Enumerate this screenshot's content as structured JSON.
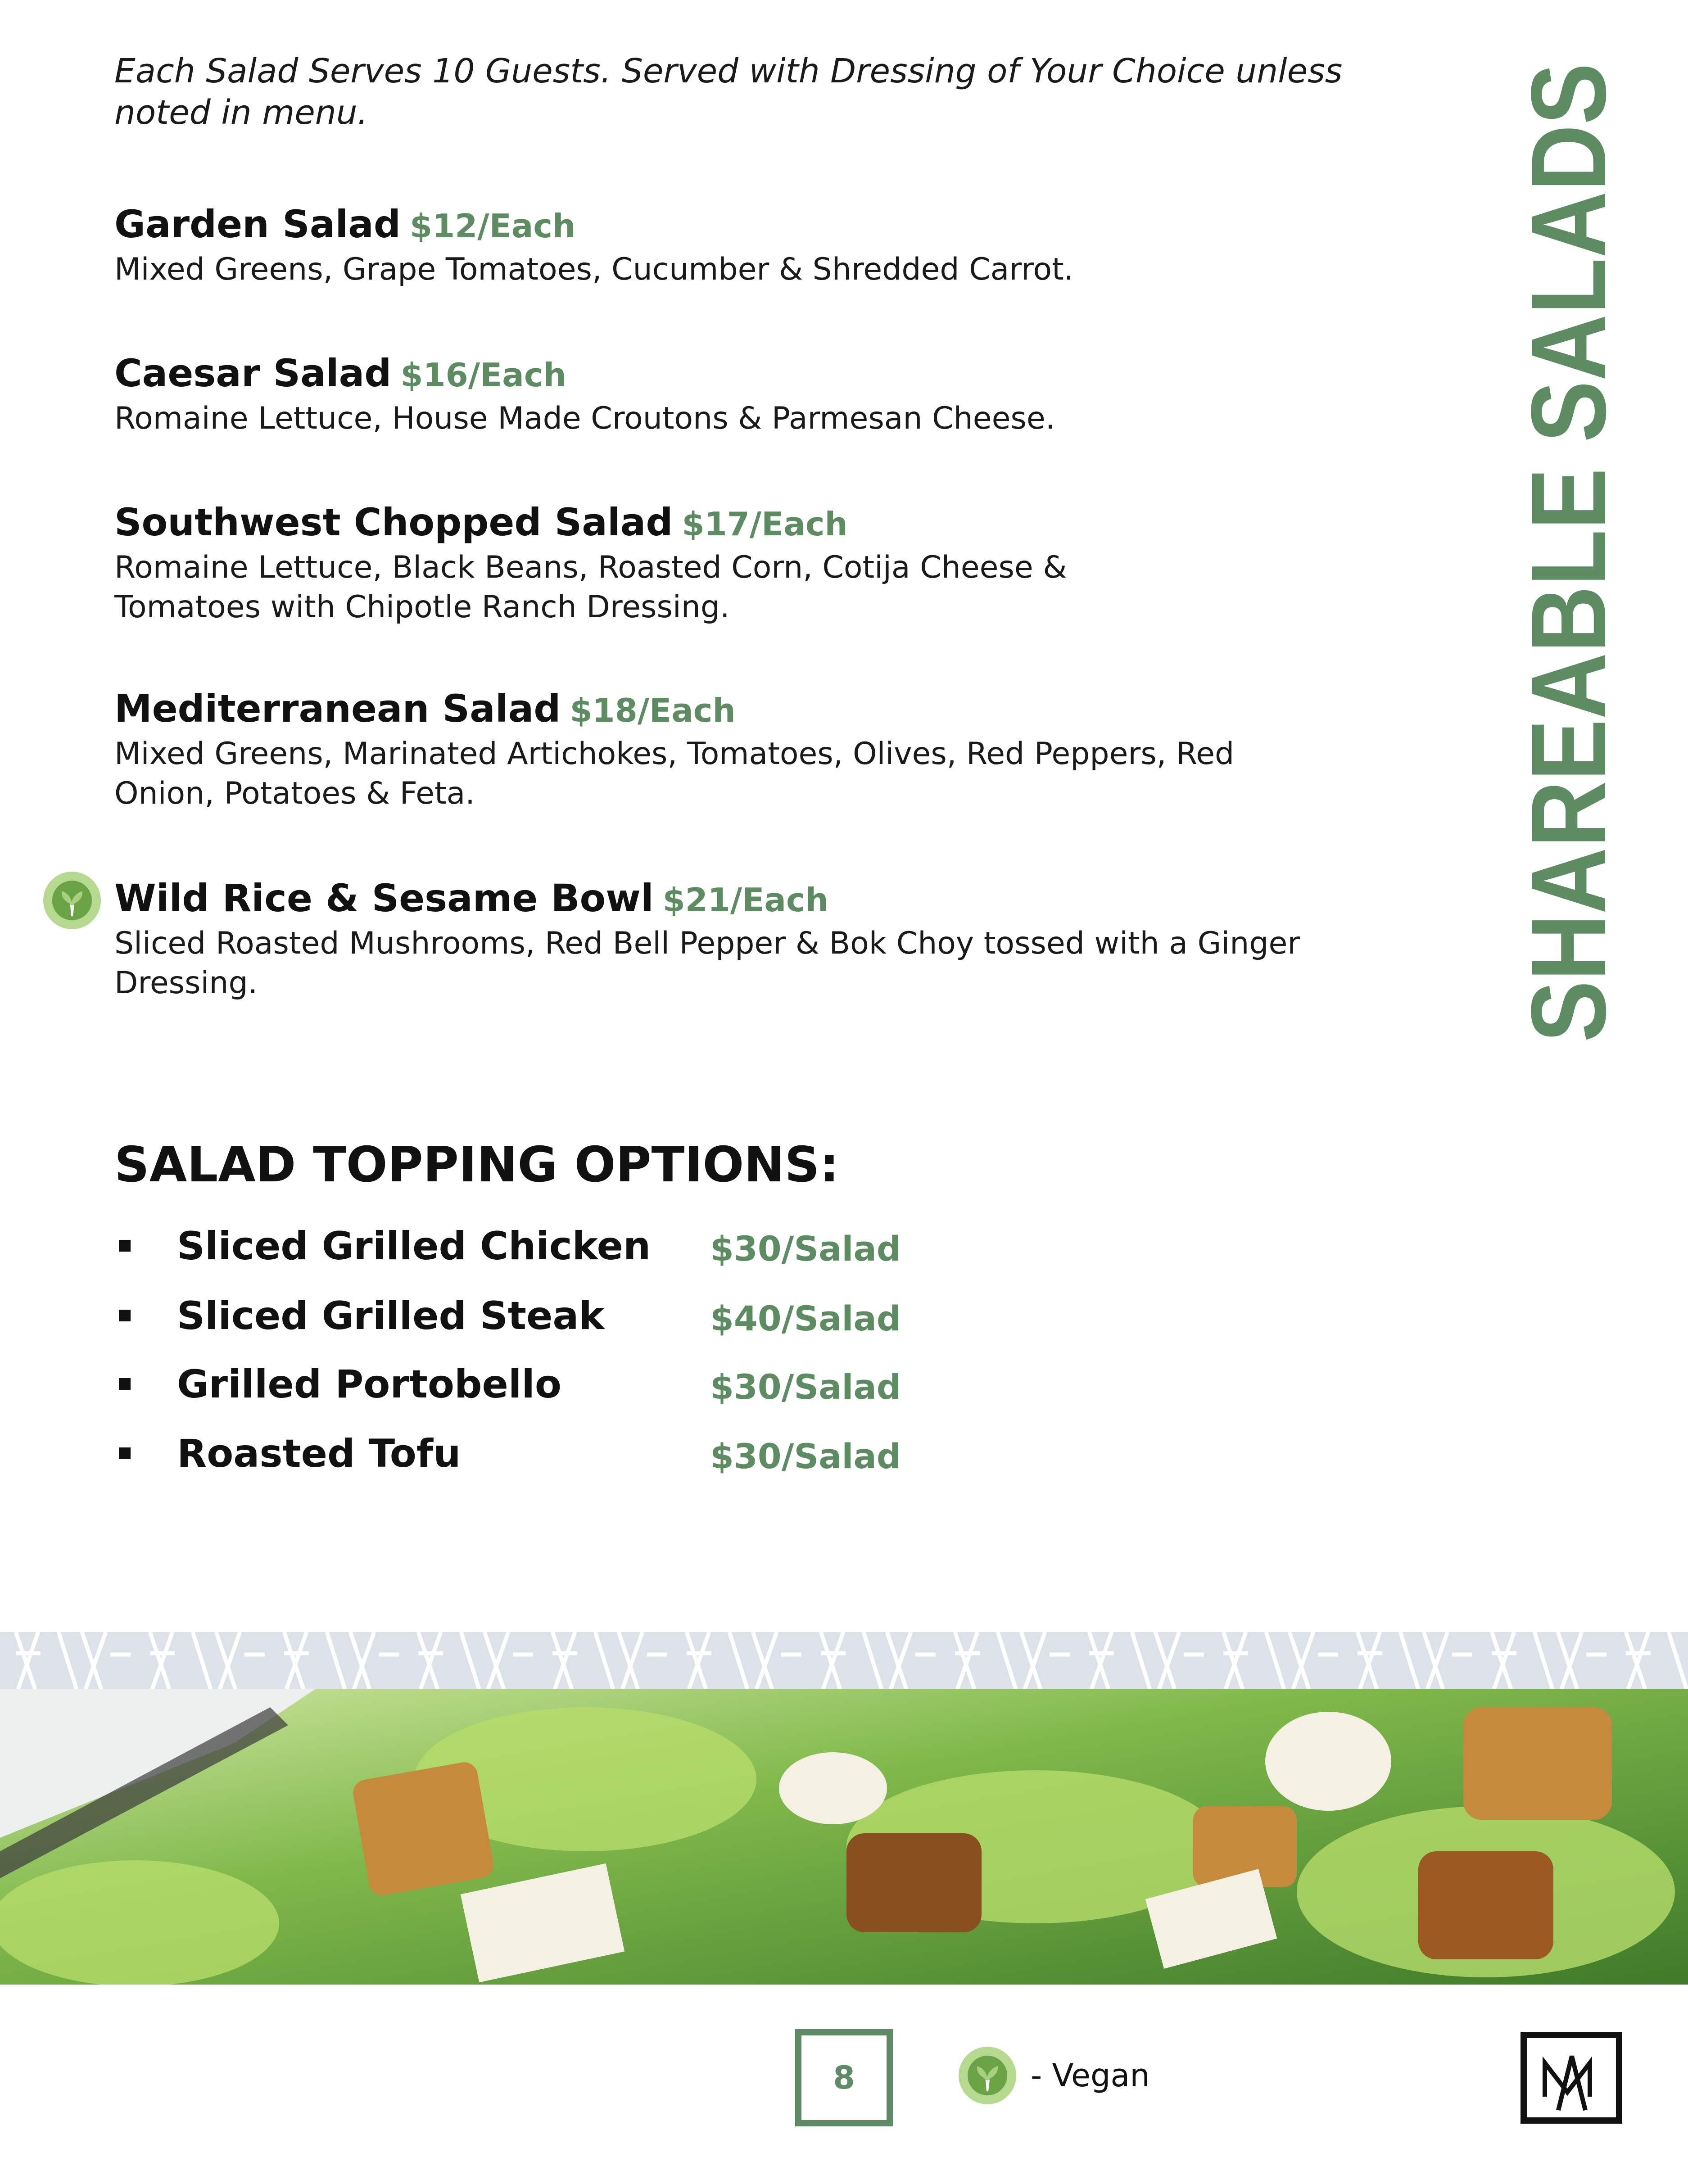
{
  "intro": "Each Salad Serves 10 Guests. Served with Dressing of Your Choice unless noted in menu.",
  "side_title": "SHAREABLE SALADS",
  "salads": [
    {
      "name": "Garden Salad",
      "price": "$12/Each",
      "description": "Mixed Greens, Grape Tomatoes, Cucumber & Shredded Carrot.",
      "vegan": false
    },
    {
      "name": "Caesar Salad",
      "price": "$16/Each",
      "description": "Romaine Lettuce, House Made Croutons & Parmesan Cheese.",
      "vegan": false
    },
    {
      "name": "Southwest Chopped Salad",
      "price": "$17/Each",
      "description": "Romaine Lettuce, Black Beans, Roasted Corn, Cotija Cheese & Tomatoes with Chipotle Ranch Dressing.",
      "vegan": false
    },
    {
      "name": "Mediterranean Salad",
      "price": "$18/Each",
      "description": "Mixed Greens, Marinated Artichokes, Tomatoes, Olives, Red Peppers, Red Onion, Potatoes & Feta.",
      "vegan": false
    },
    {
      "name": "Wild Rice & Sesame Bowl",
      "price": "$21/Each",
      "description": "Sliced Roasted Mushrooms, Red Bell Pepper & Bok Choy tossed with a Ginger Dressing.",
      "vegan": true
    }
  ],
  "toppings": {
    "heading": "SALAD TOPPING OPTIONS:",
    "items": [
      {
        "name": "Sliced Grilled Chicken",
        "price": "$30/Salad"
      },
      {
        "name": "Sliced Grilled Steak",
        "price": "$40/Salad"
      },
      {
        "name": "Grilled Portobello",
        "price": "$30/Salad"
      },
      {
        "name": "Roasted Tofu",
        "price": "$30/Salad"
      }
    ]
  },
  "footer": {
    "page_number": "8",
    "vegan_legend": "- Vegan",
    "badge_text": "VEGAN",
    "logo_text": "M"
  },
  "colors": {
    "accent_green": "#5e8c62",
    "band": "#dde2ea",
    "vegan_light": "#b5d98f",
    "vegan_dark": "#6aa246"
  }
}
